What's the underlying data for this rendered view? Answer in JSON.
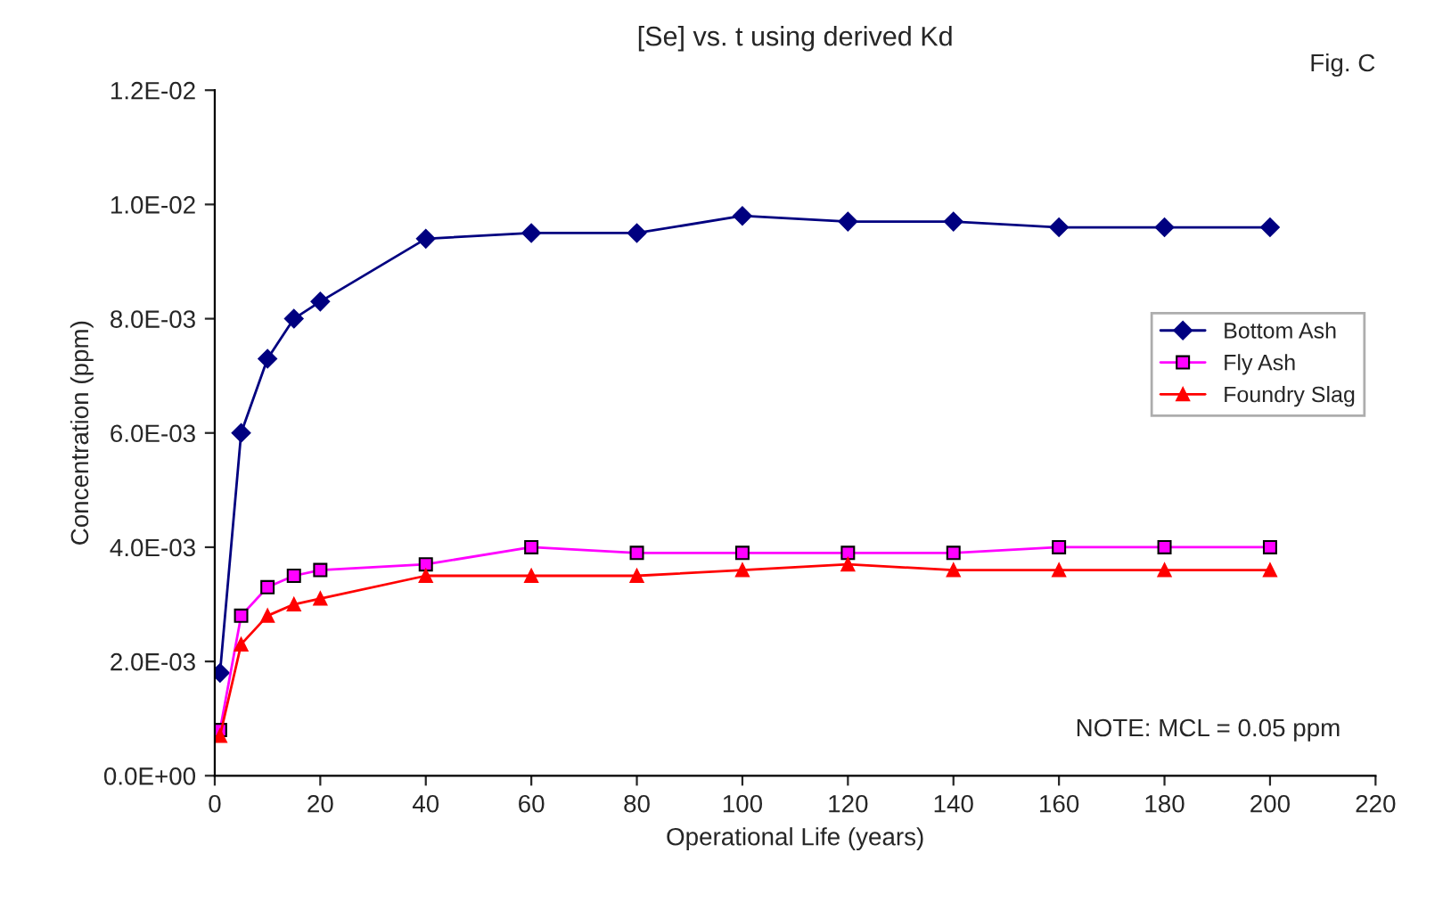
{
  "chart_data": {
    "type": "line",
    "title": "[Se] vs. t using derived Kd",
    "xlabel": "Operational Life (years)",
    "ylabel": "Concentration (ppm)",
    "annotations": [
      "Fig. C",
      "NOTE: MCL = 0.05 ppm"
    ],
    "x": [
      1,
      5,
      10,
      15,
      20,
      40,
      60,
      80,
      100,
      120,
      140,
      160,
      180,
      200
    ],
    "series": [
      {
        "name": "Bottom Ash",
        "color": "#000080",
        "marker": "diamond",
        "values": [
          0.0018,
          0.006,
          0.0073,
          0.008,
          0.0083,
          0.0094,
          0.0095,
          0.0095,
          0.0098,
          0.0097,
          0.0097,
          0.0096,
          0.0096,
          0.0096
        ]
      },
      {
        "name": "Fly Ash",
        "color": "#ff00ff",
        "marker": "square",
        "values": [
          0.0008,
          0.0028,
          0.0033,
          0.0035,
          0.0036,
          0.0037,
          0.004,
          0.0039,
          0.0039,
          0.0039,
          0.0039,
          0.004,
          0.004,
          0.004
        ]
      },
      {
        "name": "Foundry Slag",
        "color": "#ff0000",
        "marker": "triangle",
        "values": [
          0.0007,
          0.0023,
          0.0028,
          0.003,
          0.0031,
          0.0035,
          0.0035,
          0.0035,
          0.0036,
          0.0037,
          0.0036,
          0.0036,
          0.0036,
          0.0036
        ]
      }
    ],
    "xlim": [
      0,
      220
    ],
    "xticks": [
      0,
      20,
      40,
      60,
      80,
      100,
      120,
      140,
      160,
      180,
      200,
      220
    ],
    "ylim": [
      0,
      0.012
    ],
    "yticks": [
      {
        "value": 0,
        "label": "0.0E+00"
      },
      {
        "value": 0.002,
        "label": "2.0E-03"
      },
      {
        "value": 0.004,
        "label": "4.0E-03"
      },
      {
        "value": 0.006,
        "label": "6.0E-03"
      },
      {
        "value": 0.008,
        "label": "8.0E-03"
      },
      {
        "value": 0.01,
        "label": "1.0E-02"
      },
      {
        "value": 0.012,
        "label": "1.2E-02"
      }
    ],
    "grid": false,
    "legend": "right"
  }
}
